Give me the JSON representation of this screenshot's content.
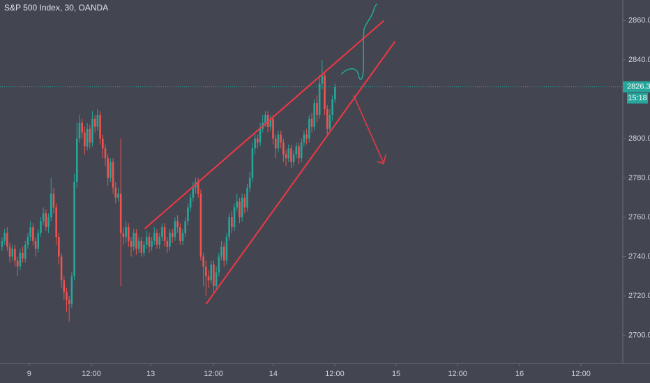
{
  "chart_data": {
    "type": "candlestick",
    "title": "S&P 500 Index, 30, OANDA",
    "countdown": "15:18",
    "up_color": "#26a69a",
    "down_color": "#ef5350",
    "price_line_color": "#26a69a",
    "grid": false,
    "xlim": [
      -0.8,
      240.5
    ],
    "xticks": [
      {
        "value": 10.5,
        "label": "9"
      },
      {
        "value": 34.6,
        "label": "12:00"
      },
      {
        "value": 57.6,
        "label": "13"
      },
      {
        "value": 81.9,
        "label": "12:00"
      },
      {
        "value": 105.1,
        "label": "14"
      },
      {
        "value": 128.9,
        "label": "12:00"
      },
      {
        "value": 152.7,
        "label": "15"
      },
      {
        "value": 176.5,
        "label": "12:00"
      },
      {
        "value": 200.5,
        "label": "16"
      },
      {
        "value": 224.3,
        "label": "12:00"
      }
    ],
    "ylim": [
      2685.7,
      2870.4
    ],
    "yticks": [
      {
        "value": 2700,
        "label": "2700.0"
      },
      {
        "value": 2720,
        "label": "2720.0"
      },
      {
        "value": 2740,
        "label": "2740.0"
      },
      {
        "value": 2760,
        "label": "2760.0"
      },
      {
        "value": 2780,
        "label": "2780.0"
      },
      {
        "value": 2800,
        "label": "2800.0"
      },
      {
        "value": 2840,
        "label": "2840.0"
      },
      {
        "value": 2860,
        "label": "2860.0"
      }
    ],
    "x": [
      0,
      1,
      2,
      3,
      4,
      5,
      6,
      7,
      8,
      9,
      10,
      11,
      12,
      13,
      14,
      15,
      16,
      17,
      18,
      19,
      20,
      21,
      22,
      23,
      24,
      25,
      26,
      27,
      28,
      29,
      30,
      31,
      32,
      33,
      34,
      35,
      36,
      37,
      38,
      39,
      40,
      41,
      42,
      43,
      44,
      45,
      46,
      47,
      48,
      49,
      50,
      51,
      52,
      53,
      54,
      55,
      56,
      57,
      58,
      59,
      60,
      61,
      62,
      63,
      64,
      65,
      66,
      67,
      68,
      69,
      70,
      71,
      72,
      73,
      74,
      75,
      76,
      77,
      78,
      79,
      80,
      81,
      82,
      83,
      84,
      85,
      86,
      87,
      88,
      89,
      90,
      91,
      92,
      93,
      94,
      95,
      96,
      97,
      98,
      99,
      100,
      101,
      102,
      103,
      104,
      105,
      106,
      107,
      108,
      109,
      110,
      111,
      112,
      113,
      114,
      115,
      116,
      117,
      118,
      119,
      120,
      121,
      122,
      123,
      124,
      125,
      126,
      127,
      128,
      129
    ],
    "open": [
      2745,
      2748,
      2752,
      2745,
      2740,
      2744,
      2738,
      2735,
      2742,
      2739,
      2746,
      2750,
      2755,
      2748,
      2744,
      2752,
      2758,
      2762,
      2755,
      2760,
      2772,
      2765,
      2750,
      2740,
      2728,
      2722,
      2718,
      2716,
      2730,
      2778,
      2800,
      2808,
      2803,
      2796,
      2805,
      2798,
      2810,
      2806,
      2812,
      2800,
      2795,
      2790,
      2780,
      2788,
      2775,
      2770,
      2772,
      2752,
      2750,
      2755,
      2748,
      2745,
      2752,
      2744,
      2748,
      2742,
      2746,
      2750,
      2745,
      2748,
      2752,
      2746,
      2750,
      2755,
      2748,
      2745,
      2752,
      2750,
      2758,
      2755,
      2748,
      2752,
      2758,
      2765,
      2770,
      2775,
      2778,
      2772,
      2740,
      2735,
      2730,
      2728,
      2736,
      2725,
      2732,
      2740,
      2745,
      2738,
      2750,
      2760,
      2755,
      2765,
      2768,
      2760,
      2770,
      2765,
      2775,
      2780,
      2795,
      2800,
      2798,
      2805,
      2808,
      2812,
      2806,
      2810,
      2800,
      2795,
      2802,
      2798,
      2792,
      2790,
      2795,
      2788,
      2792,
      2796,
      2790,
      2798,
      2802,
      2800,
      2810,
      2806,
      2818,
      2812,
      2828,
      2832,
      2815,
      2805,
      2812,
      2820
    ],
    "high": [
      2750,
      2754,
      2755,
      2747,
      2746,
      2746,
      2740,
      2744,
      2745,
      2748,
      2752,
      2758,
      2757,
      2750,
      2754,
      2760,
      2765,
      2764,
      2762,
      2780,
      2775,
      2767,
      2752,
      2742,
      2730,
      2724,
      2720,
      2732,
      2782,
      2808,
      2812,
      2810,
      2806,
      2808,
      2807,
      2814,
      2812,
      2815,
      2814,
      2802,
      2797,
      2792,
      2790,
      2790,
      2778,
      2775,
      2800,
      2755,
      2758,
      2757,
      2750,
      2754,
      2754,
      2750,
      2750,
      2748,
      2753,
      2752,
      2750,
      2755,
      2754,
      2752,
      2757,
      2757,
      2750,
      2754,
      2754,
      2760,
      2761,
      2757,
      2754,
      2760,
      2767,
      2772,
      2778,
      2780,
      2780,
      2774,
      2742,
      2738,
      2733,
      2738,
      2738,
      2735,
      2742,
      2748,
      2747,
      2752,
      2762,
      2763,
      2767,
      2772,
      2770,
      2772,
      2772,
      2777,
      2783,
      2798,
      2803,
      2802,
      2808,
      2812,
      2814,
      2814,
      2812,
      2812,
      2802,
      2804,
      2804,
      2800,
      2794,
      2797,
      2797,
      2794,
      2798,
      2798,
      2800,
      2804,
      2805,
      2812,
      2813,
      2820,
      2822,
      2832,
      2840,
      2834,
      2817,
      2815,
      2822,
      2828
    ],
    "low": [
      2743,
      2746,
      2743,
      2737,
      2738,
      2735,
      2730,
      2733,
      2737,
      2737,
      2744,
      2748,
      2746,
      2740,
      2742,
      2750,
      2756,
      2753,
      2752,
      2758,
      2762,
      2746,
      2736,
      2724,
      2718,
      2712,
      2707,
      2714,
      2728,
      2775,
      2798,
      2800,
      2792,
      2794,
      2795,
      2796,
      2803,
      2804,
      2797,
      2790,
      2786,
      2776,
      2778,
      2772,
      2767,
      2768,
      2725,
      2746,
      2747,
      2745,
      2740,
      2743,
      2741,
      2742,
      2740,
      2740,
      2744,
      2742,
      2743,
      2746,
      2744,
      2744,
      2748,
      2745,
      2742,
      2743,
      2747,
      2748,
      2752,
      2746,
      2746,
      2750,
      2756,
      2763,
      2768,
      2772,
      2770,
      2738,
      2725,
      2720,
      2724,
      2726,
      2722,
      2723,
      2730,
      2738,
      2735,
      2736,
      2748,
      2752,
      2753,
      2763,
      2757,
      2758,
      2762,
      2763,
      2773,
      2778,
      2792,
      2795,
      2796,
      2803,
      2806,
      2803,
      2804,
      2797,
      2790,
      2793,
      2795,
      2788,
      2786,
      2788,
      2785,
      2786,
      2790,
      2787,
      2788,
      2796,
      2797,
      2798,
      2803,
      2804,
      2808,
      2810,
      2825,
      2812,
      2802,
      2803,
      2809,
      2818
    ],
    "close": [
      2748,
      2752,
      2745,
      2740,
      2744,
      2738,
      2735,
      2742,
      2739,
      2746,
      2750,
      2755,
      2748,
      2744,
      2752,
      2758,
      2762,
      2755,
      2760,
      2772,
      2765,
      2750,
      2740,
      2728,
      2722,
      2718,
      2716,
      2730,
      2778,
      2800,
      2808,
      2803,
      2796,
      2805,
      2798,
      2810,
      2806,
      2812,
      2800,
      2795,
      2790,
      2780,
      2788,
      2775,
      2770,
      2772,
      2752,
      2750,
      2755,
      2748,
      2745,
      2752,
      2744,
      2748,
      2742,
      2746,
      2750,
      2745,
      2748,
      2752,
      2746,
      2750,
      2755,
      2748,
      2745,
      2752,
      2750,
      2758,
      2755,
      2748,
      2752,
      2758,
      2765,
      2770,
      2775,
      2778,
      2772,
      2740,
      2735,
      2730,
      2728,
      2736,
      2725,
      2732,
      2740,
      2745,
      2738,
      2750,
      2760,
      2755,
      2765,
      2768,
      2760,
      2770,
      2765,
      2775,
      2780,
      2795,
      2800,
      2798,
      2805,
      2808,
      2812,
      2806,
      2810,
      2800,
      2795,
      2802,
      2798,
      2792,
      2790,
      2795,
      2788,
      2792,
      2796,
      2790,
      2798,
      2802,
      2800,
      2810,
      2806,
      2818,
      2812,
      2828,
      2832,
      2815,
      2805,
      2812,
      2820,
      2826.3
    ]
  }
}
